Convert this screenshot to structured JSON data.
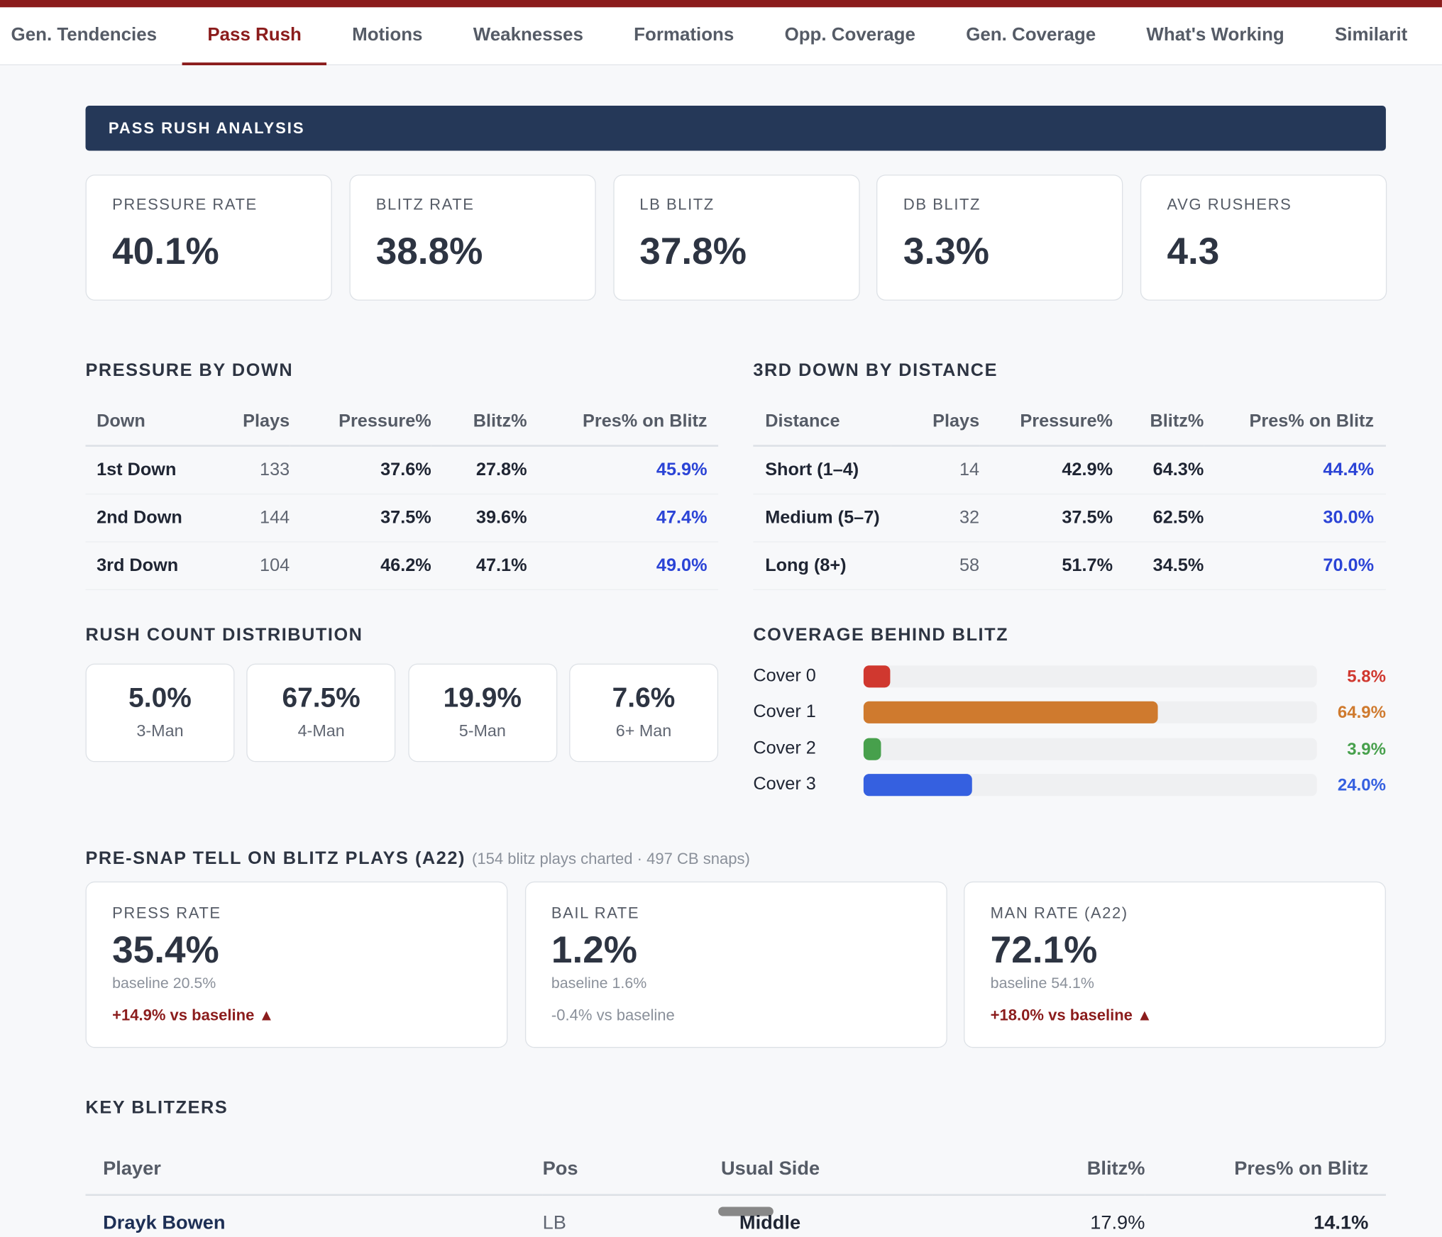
{
  "tabs": [
    "Gen. Tendencies",
    "Pass Rush",
    "Motions",
    "Weaknesses",
    "Formations",
    "Opp. Coverage",
    "Gen. Coverage",
    "What's Working",
    "Similarit"
  ],
  "section_title": "PASS RUSH ANALYSIS",
  "kpis": [
    {
      "label": "PRESSURE RATE",
      "value": "40.1%"
    },
    {
      "label": "BLITZ RATE",
      "value": "38.8%"
    },
    {
      "label": "LB BLITZ",
      "value": "37.8%"
    },
    {
      "label": "DB BLITZ",
      "value": "3.3%"
    },
    {
      "label": "AVG RUSHERS",
      "value": "4.3"
    }
  ],
  "pressure_by_down": {
    "title": "PRESSURE BY DOWN",
    "columns": [
      "Down",
      "Plays",
      "Pressure%",
      "Blitz%",
      "Pres% on Blitz"
    ],
    "rows": [
      [
        "1st Down",
        "133",
        "37.6%",
        "27.8%",
        "45.9%"
      ],
      [
        "2nd Down",
        "144",
        "37.5%",
        "39.6%",
        "47.4%"
      ],
      [
        "3rd Down",
        "104",
        "46.2%",
        "47.1%",
        "49.0%"
      ]
    ]
  },
  "third_down_by_distance": {
    "title": "3RD DOWN BY DISTANCE",
    "columns": [
      "Distance",
      "Plays",
      "Pressure%",
      "Blitz%",
      "Pres% on Blitz"
    ],
    "rows": [
      [
        "Short (1–4)",
        "14",
        "42.9%",
        "64.3%",
        "44.4%"
      ],
      [
        "Medium (5–7)",
        "32",
        "37.5%",
        "62.5%",
        "30.0%"
      ],
      [
        "Long (8+)",
        "58",
        "51.7%",
        "34.5%",
        "70.0%"
      ]
    ]
  },
  "rush_count_distribution": {
    "title": "RUSH COUNT DISTRIBUTION",
    "items": [
      {
        "value": "5.0%",
        "label": "3-Man"
      },
      {
        "value": "67.5%",
        "label": "4-Man"
      },
      {
        "value": "19.9%",
        "label": "5-Man"
      },
      {
        "value": "7.6%",
        "label": "6+ Man"
      }
    ]
  },
  "coverage_behind_blitz": {
    "title": "COVERAGE BEHIND BLITZ",
    "xlim": [
      0,
      100
    ],
    "rows": [
      {
        "name": "Cover 0",
        "value": 5.8,
        "label": "5.8%",
        "color": "#d0382f"
      },
      {
        "name": "Cover 1",
        "value": 64.9,
        "label": "64.9%",
        "color": "#cf7a2e"
      },
      {
        "name": "Cover 2",
        "value": 3.9,
        "label": "3.9%",
        "color": "#47a04c"
      },
      {
        "name": "Cover 3",
        "value": 24.0,
        "label": "24.0%",
        "color": "#3560e0"
      }
    ]
  },
  "pre_snap_tell": {
    "title": "PRE-SNAP TELL ON BLITZ PLAYS (A22)",
    "note": "(154 blitz plays charted · 497 CB snaps)",
    "cards": [
      {
        "label": "PRESS RATE",
        "value": "35.4%",
        "baseline": "baseline 20.5%",
        "delta": "+14.9% vs baseline ▲",
        "trend": "up"
      },
      {
        "label": "BAIL RATE",
        "value": "1.2%",
        "baseline": "baseline 1.6%",
        "delta": "-0.4% vs baseline",
        "trend": "flat"
      },
      {
        "label": "MAN RATE (A22)",
        "value": "72.1%",
        "baseline": "baseline 54.1%",
        "delta": "+18.0% vs baseline ▲",
        "trend": "up"
      }
    ]
  },
  "key_blitzers": {
    "title": "KEY BLITZERS",
    "columns": [
      "Player",
      "Pos",
      "Usual Side",
      "Blitz%",
      "Pres% on Blitz"
    ],
    "rows": [
      [
        "Drayk Bowen",
        "LB",
        "Middle",
        "17.9%",
        "14.1%"
      ]
    ]
  }
}
